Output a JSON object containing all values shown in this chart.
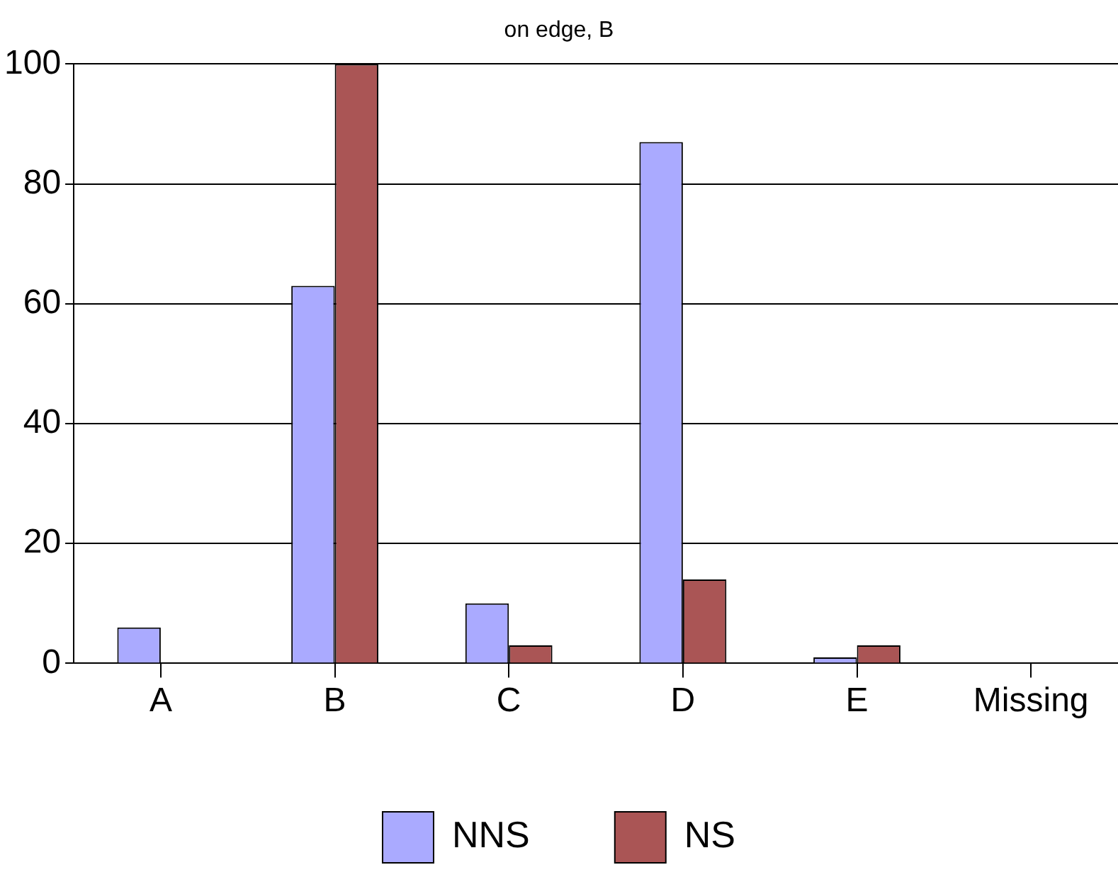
{
  "chart_data": {
    "type": "bar",
    "title": "on edge, B",
    "categories": [
      "A",
      "B",
      "C",
      "D",
      "E",
      "Missing"
    ],
    "series": [
      {
        "name": "NNS",
        "color": "#aaaaff",
        "values": [
          6,
          63,
          10,
          87,
          1,
          0
        ]
      },
      {
        "name": "NS",
        "color": "#aa5555",
        "values": [
          0,
          100,
          3,
          14,
          3,
          0
        ]
      }
    ],
    "ylim": [
      0,
      100
    ],
    "yticks": [
      0,
      20,
      40,
      60,
      80,
      100
    ],
    "grid": "y",
    "legend": "bottom"
  }
}
